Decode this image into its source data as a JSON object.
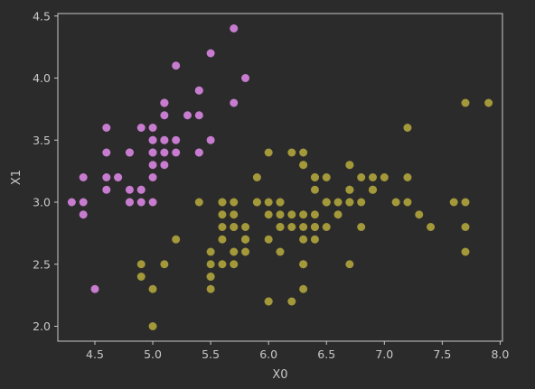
{
  "chart_data": {
    "type": "scatter",
    "title": "",
    "xlabel": "X0",
    "ylabel": "X1",
    "xlim": [
      4.18,
      8.02
    ],
    "ylim": [
      1.88,
      4.52
    ],
    "xticks": [
      "4.5",
      "5.0",
      "5.5",
      "6.0",
      "6.5",
      "7.0",
      "7.5",
      "8.0"
    ],
    "yticks": [
      "2.0",
      "2.5",
      "3.0",
      "3.5",
      "4.0",
      "4.5"
    ],
    "grid": false,
    "background_color": "#2b2b2b",
    "axes_color": "#c8c8c8",
    "series": [
      {
        "color": "#c77ccf",
        "points": [
          [
            5.1,
            3.5
          ],
          [
            4.9,
            3.0
          ],
          [
            4.7,
            3.2
          ],
          [
            4.6,
            3.1
          ],
          [
            5.0,
            3.6
          ],
          [
            5.4,
            3.9
          ],
          [
            4.6,
            3.4
          ],
          [
            5.0,
            3.4
          ],
          [
            4.4,
            2.9
          ],
          [
            4.9,
            3.1
          ],
          [
            5.4,
            3.7
          ],
          [
            4.8,
            3.4
          ],
          [
            4.8,
            3.0
          ],
          [
            4.3,
            3.0
          ],
          [
            5.8,
            4.0
          ],
          [
            5.7,
            4.4
          ],
          [
            5.4,
            3.9
          ],
          [
            5.1,
            3.5
          ],
          [
            5.7,
            3.8
          ],
          [
            5.1,
            3.8
          ],
          [
            5.4,
            3.4
          ],
          [
            5.1,
            3.7
          ],
          [
            4.6,
            3.6
          ],
          [
            5.1,
            3.3
          ],
          [
            4.8,
            3.4
          ],
          [
            5.0,
            3.0
          ],
          [
            5.0,
            3.4
          ],
          [
            5.2,
            3.5
          ],
          [
            5.2,
            3.4
          ],
          [
            4.7,
            3.2
          ],
          [
            4.8,
            3.1
          ],
          [
            5.4,
            3.4
          ],
          [
            5.2,
            4.1
          ],
          [
            5.5,
            4.2
          ],
          [
            4.9,
            3.1
          ],
          [
            5.0,
            3.2
          ],
          [
            5.5,
            3.5
          ],
          [
            4.9,
            3.6
          ],
          [
            4.4,
            3.0
          ],
          [
            5.1,
            3.4
          ],
          [
            5.0,
            3.5
          ],
          [
            4.5,
            2.3
          ],
          [
            4.4,
            3.2
          ],
          [
            5.0,
            3.5
          ],
          [
            5.1,
            3.8
          ],
          [
            4.8,
            3.0
          ],
          [
            5.1,
            3.8
          ],
          [
            4.6,
            3.2
          ],
          [
            5.3,
            3.7
          ],
          [
            5.0,
            3.3
          ]
        ]
      },
      {
        "color": "#a3983a",
        "points": [
          [
            7.0,
            3.2
          ],
          [
            6.4,
            3.2
          ],
          [
            6.9,
            3.1
          ],
          [
            5.5,
            2.3
          ],
          [
            6.5,
            2.8
          ],
          [
            5.7,
            2.8
          ],
          [
            6.3,
            3.3
          ],
          [
            4.9,
            2.4
          ],
          [
            6.6,
            2.9
          ],
          [
            5.2,
            2.7
          ],
          [
            5.0,
            2.0
          ],
          [
            5.9,
            3.0
          ],
          [
            6.0,
            2.2
          ],
          [
            6.1,
            2.9
          ],
          [
            5.6,
            2.9
          ],
          [
            6.7,
            3.1
          ],
          [
            5.6,
            3.0
          ],
          [
            5.8,
            2.7
          ],
          [
            6.2,
            2.2
          ],
          [
            5.6,
            2.5
          ],
          [
            5.9,
            3.2
          ],
          [
            6.1,
            2.8
          ],
          [
            6.3,
            2.5
          ],
          [
            6.1,
            2.8
          ],
          [
            6.4,
            2.9
          ],
          [
            6.6,
            3.0
          ],
          [
            6.8,
            2.8
          ],
          [
            6.7,
            3.0
          ],
          [
            6.0,
            2.9
          ],
          [
            5.7,
            2.6
          ],
          [
            5.5,
            2.4
          ],
          [
            5.5,
            2.4
          ],
          [
            5.8,
            2.7
          ],
          [
            6.0,
            2.7
          ],
          [
            5.4,
            3.0
          ],
          [
            6.0,
            3.4
          ],
          [
            6.7,
            3.1
          ],
          [
            6.3,
            2.3
          ],
          [
            5.6,
            3.0
          ],
          [
            5.5,
            2.5
          ],
          [
            5.5,
            2.6
          ],
          [
            6.1,
            3.0
          ],
          [
            5.8,
            2.6
          ],
          [
            5.0,
            2.3
          ],
          [
            5.6,
            2.7
          ],
          [
            5.7,
            3.0
          ],
          [
            5.7,
            2.9
          ],
          [
            6.2,
            2.9
          ],
          [
            5.1,
            2.5
          ],
          [
            5.7,
            2.8
          ],
          [
            6.3,
            3.3
          ],
          [
            5.8,
            2.7
          ],
          [
            7.1,
            3.0
          ],
          [
            6.3,
            2.9
          ],
          [
            6.5,
            3.0
          ],
          [
            7.6,
            3.0
          ],
          [
            4.9,
            2.5
          ],
          [
            7.3,
            2.9
          ],
          [
            6.7,
            2.5
          ],
          [
            7.2,
            3.6
          ],
          [
            6.5,
            3.2
          ],
          [
            6.4,
            2.7
          ],
          [
            6.8,
            3.0
          ],
          [
            5.7,
            2.5
          ],
          [
            5.8,
            2.8
          ],
          [
            6.4,
            3.2
          ],
          [
            6.5,
            3.0
          ],
          [
            7.7,
            3.8
          ],
          [
            7.7,
            2.6
          ],
          [
            6.0,
            2.2
          ],
          [
            6.9,
            3.2
          ],
          [
            5.6,
            2.8
          ],
          [
            7.7,
            2.8
          ],
          [
            6.3,
            2.7
          ],
          [
            6.7,
            3.3
          ],
          [
            7.2,
            3.2
          ],
          [
            6.2,
            2.8
          ],
          [
            6.1,
            3.0
          ],
          [
            6.4,
            2.8
          ],
          [
            7.2,
            3.0
          ],
          [
            7.4,
            2.8
          ],
          [
            7.9,
            3.8
          ],
          [
            6.4,
            2.8
          ],
          [
            6.3,
            2.8
          ],
          [
            6.1,
            2.6
          ],
          [
            7.7,
            3.0
          ],
          [
            6.3,
            3.4
          ],
          [
            6.4,
            3.1
          ],
          [
            6.0,
            3.0
          ],
          [
            6.9,
            3.1
          ],
          [
            6.7,
            3.1
          ],
          [
            6.9,
            3.1
          ],
          [
            5.8,
            2.7
          ],
          [
            6.8,
            3.2
          ],
          [
            6.7,
            3.3
          ],
          [
            6.7,
            3.0
          ],
          [
            6.3,
            2.5
          ],
          [
            6.5,
            3.0
          ],
          [
            6.2,
            3.4
          ],
          [
            5.9,
            3.0
          ]
        ]
      }
    ]
  }
}
